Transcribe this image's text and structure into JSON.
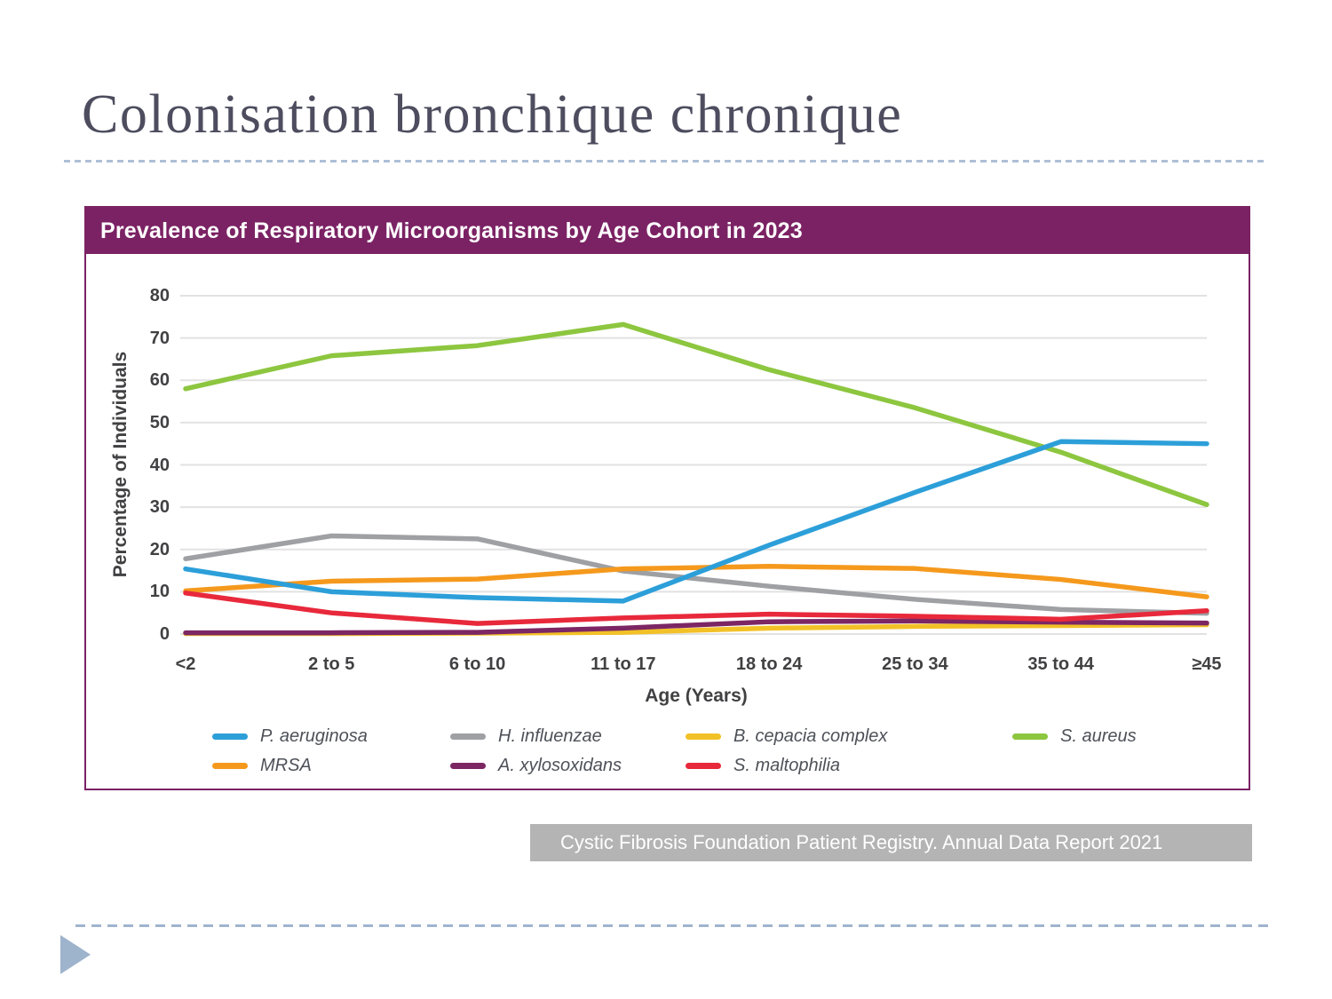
{
  "slide": {
    "title": "Colonisation bronchique chronique",
    "source_note": "Cystic Fibrosis Foundation Patient Registry. Annual Data Report 2021"
  },
  "chart": {
    "colors": {
      "header_bg": "#7B2264",
      "card_border": "#7B2264",
      "gridline": "#E2E2E2",
      "tick_text": "#414042",
      "citation_bg": "#B4B4B4"
    }
  },
  "chart_data": {
    "type": "line",
    "title": "Prevalence of Respiratory Microorganisms by Age Cohort in 2023",
    "xlabel": "Age (Years)",
    "ylabel": "Percentage of Individuals",
    "ylim": [
      0,
      80
    ],
    "yticks": [
      0,
      10,
      20,
      30,
      40,
      50,
      60,
      70,
      80
    ],
    "grid": "horizontal",
    "legend_position": "bottom",
    "categories": [
      "<2",
      "2 to 5",
      "6 to 10",
      "11 to 17",
      "18 to 24",
      "25 to 34",
      "35 to 44",
      "≥45"
    ],
    "series": [
      {
        "name": "P. aeruginosa",
        "color": "#2C9FD9",
        "values": [
          15.4,
          10.0,
          8.6,
          7.8,
          21.0,
          33.5,
          45.5,
          45.0
        ]
      },
      {
        "name": "H. influenzae",
        "color": "#9EA0A3",
        "values": [
          17.8,
          23.2,
          22.5,
          14.9,
          11.3,
          8.2,
          5.8,
          4.9
        ]
      },
      {
        "name": "B. cepacia complex",
        "color": "#F2C127",
        "values": [
          0.1,
          0.1,
          0.2,
          0.4,
          1.4,
          1.8,
          2.0,
          2.2
        ]
      },
      {
        "name": "S. aureus",
        "color": "#8DC63F",
        "values": [
          58.0,
          65.8,
          68.2,
          73.2,
          62.5,
          53.5,
          43.0,
          30.6
        ]
      },
      {
        "name": "MRSA",
        "color": "#F5991D",
        "values": [
          10.2,
          12.5,
          13.0,
          15.4,
          16.0,
          15.5,
          12.9,
          8.8
        ]
      },
      {
        "name": "A. xylosoxidans",
        "color": "#7C2664",
        "values": [
          0.3,
          0.3,
          0.4,
          1.4,
          2.9,
          3.1,
          2.8,
          2.6
        ]
      },
      {
        "name": "S. maltophilia",
        "color": "#E8293B",
        "values": [
          9.7,
          5.0,
          2.5,
          3.8,
          4.7,
          4.2,
          3.5,
          5.5
        ]
      }
    ],
    "draw_order": [
      2,
      1,
      3,
      4,
      5,
      6,
      0
    ]
  }
}
